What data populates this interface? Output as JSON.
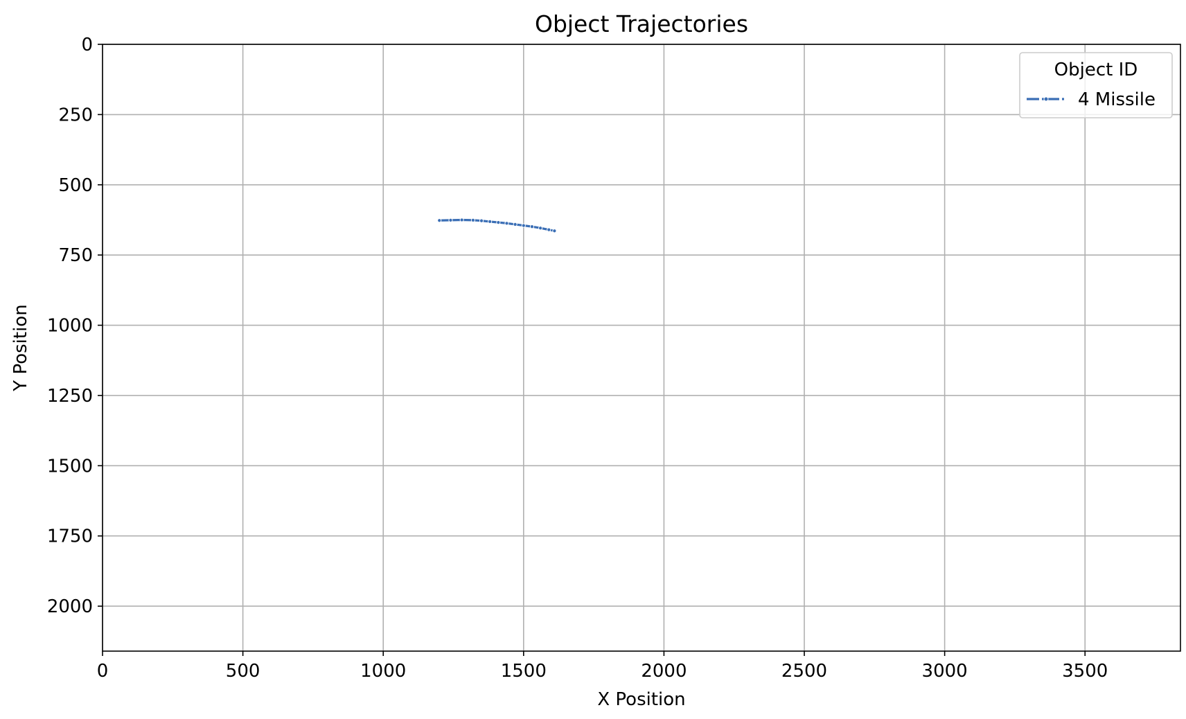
{
  "chart_data": {
    "type": "line",
    "title": "Object Trajectories",
    "xlabel": "X Position",
    "ylabel": "Y Position",
    "xlim": [
      0,
      3840
    ],
    "ylim": [
      2160,
      0
    ],
    "y_inverted": true,
    "xticks": [
      0,
      500,
      1000,
      1500,
      2000,
      2500,
      3000,
      3500
    ],
    "yticks": [
      0,
      250,
      500,
      750,
      1000,
      1250,
      1500,
      1750,
      2000
    ],
    "grid": true,
    "legend": {
      "title": "Object ID",
      "placement": "top-right"
    },
    "series": [
      {
        "name": "4 Missile",
        "color": "#3a6eb5",
        "marker": "point",
        "points": [
          {
            "x": 1200,
            "y": 627
          },
          {
            "x": 1240,
            "y": 626
          },
          {
            "x": 1280,
            "y": 625
          },
          {
            "x": 1320,
            "y": 626
          },
          {
            "x": 1350,
            "y": 628
          },
          {
            "x": 1380,
            "y": 631
          },
          {
            "x": 1410,
            "y": 634
          },
          {
            "x": 1440,
            "y": 637
          },
          {
            "x": 1470,
            "y": 641
          },
          {
            "x": 1500,
            "y": 645
          },
          {
            "x": 1530,
            "y": 649
          },
          {
            "x": 1560,
            "y": 654
          },
          {
            "x": 1590,
            "y": 660
          },
          {
            "x": 1610,
            "y": 664
          }
        ]
      }
    ]
  }
}
